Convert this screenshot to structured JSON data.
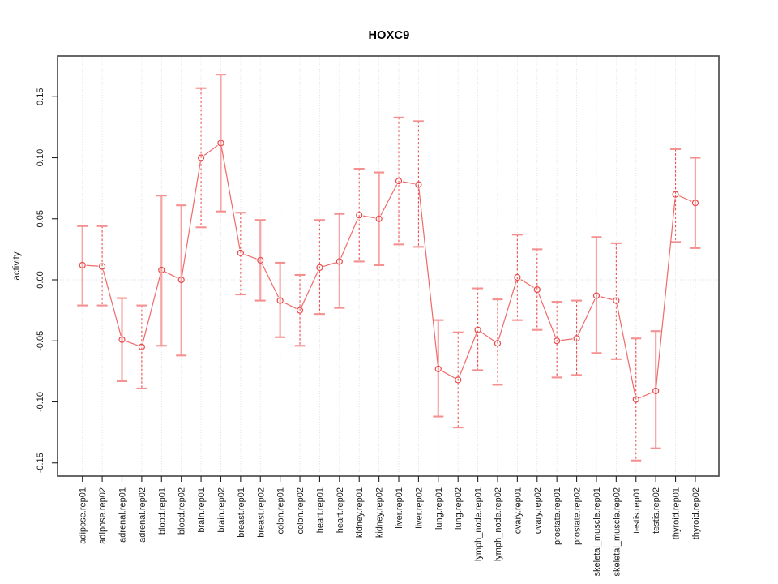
{
  "chart_data": {
    "type": "line",
    "title": "HOXC9",
    "xlabel": "",
    "ylabel": "activity",
    "legend": "none",
    "grid": "vertical-dotted-per-category, dotted-zero-line",
    "ylim": [
      -0.16,
      0.183
    ],
    "yticks": {
      "values": [
        -0.15,
        -0.1,
        -0.05,
        0.0,
        0.05,
        0.1,
        0.15
      ],
      "labels": [
        "-0.15",
        "-0.10",
        "-0.05",
        "0.00",
        "0.05",
        "0.10",
        "0.15"
      ]
    },
    "categories": [
      "adipose.rep01",
      "adipose.rep02",
      "adrenal.rep01",
      "adrenal.rep02",
      "blood.rep01",
      "blood.rep02",
      "brain.rep01",
      "brain.rep02",
      "breast.rep01",
      "breast.rep02",
      "colon.rep01",
      "colon.rep02",
      "heart.rep01",
      "heart.rep02",
      "kidney.rep01",
      "kidney.rep02",
      "liver.rep01",
      "liver.rep02",
      "lung.rep01",
      "lung.rep02",
      "lymph_node.rep01",
      "lymph_node.rep02",
      "ovary.rep01",
      "ovary.rep02",
      "prostate.rep01",
      "prostate.rep02",
      "skeletal_muscle.rep01",
      "skeletal_muscle.rep02",
      "testis.rep01",
      "testis.rep02",
      "thyroid.rep01",
      "thyroid.rep02"
    ],
    "values": [
      0.012,
      0.011,
      -0.049,
      -0.055,
      0.008,
      0.0,
      0.1,
      0.112,
      0.022,
      0.016,
      -0.017,
      -0.025,
      0.01,
      0.015,
      0.053,
      0.05,
      0.081,
      0.078,
      -0.073,
      -0.082,
      -0.041,
      -0.052,
      0.002,
      -0.008,
      -0.05,
      -0.048,
      -0.013,
      -0.017,
      -0.098,
      -0.091,
      0.07,
      0.063
    ],
    "err_hi": [
      0.044,
      0.044,
      -0.015,
      -0.021,
      0.069,
      0.061,
      0.157,
      0.168,
      0.055,
      0.049,
      0.014,
      0.004,
      0.049,
      0.054,
      0.091,
      0.088,
      0.133,
      0.13,
      -0.033,
      -0.043,
      -0.007,
      -0.016,
      0.037,
      0.025,
      -0.018,
      -0.017,
      0.035,
      0.03,
      -0.048,
      -0.042,
      0.107,
      0.1
    ],
    "err_lo": [
      -0.021,
      -0.021,
      -0.083,
      -0.089,
      -0.054,
      -0.062,
      0.043,
      0.056,
      -0.012,
      -0.017,
      -0.047,
      -0.054,
      -0.028,
      -0.023,
      0.015,
      0.012,
      0.029,
      0.027,
      -0.112,
      -0.121,
      -0.074,
      -0.086,
      -0.033,
      -0.041,
      -0.08,
      -0.078,
      -0.06,
      -0.065,
      -0.148,
      -0.138,
      0.031,
      0.026
    ],
    "bar_style": [
      "solid",
      "dashed",
      "solid",
      "dashed",
      "solid",
      "solid",
      "dashed",
      "solid",
      "dashed",
      "solid",
      "solid",
      "dashed",
      "dashed",
      "solid",
      "dashed",
      "solid",
      "dashed",
      "dashed",
      "solid",
      "dashed",
      "dashed",
      "dashed",
      "dashed",
      "dashed",
      "dashed",
      "dashed",
      "solid",
      "dashed",
      "dashed",
      "solid",
      "dashed",
      "solid"
    ],
    "colors": {
      "point": "#E94A4A",
      "segment": "#F06A6A",
      "bar_dashed": "#EF5050",
      "bar_solid": "#F7A4A4",
      "cap": "#F59090",
      "grid": "#DBDBDB",
      "zero_line": "#DBDBDB",
      "box": "#4D4D4D",
      "tick": "#222222",
      "label": "#1A1A1A"
    }
  }
}
